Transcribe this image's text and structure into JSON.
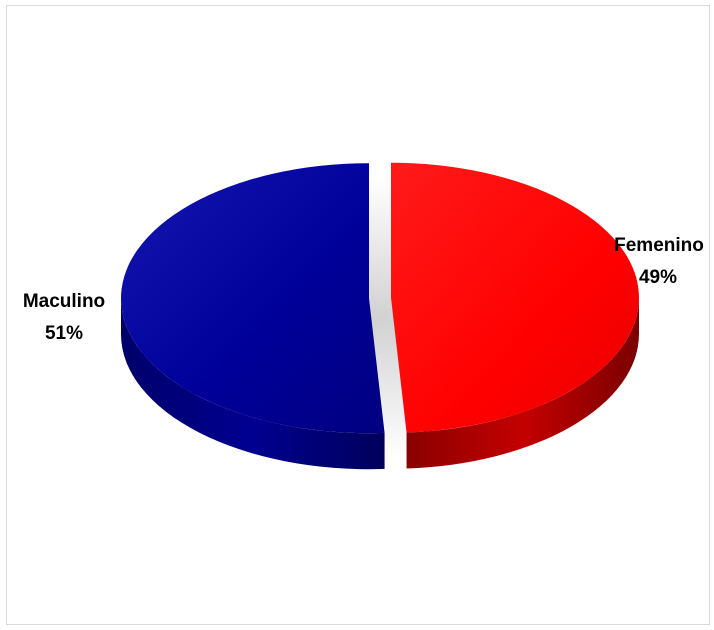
{
  "chart_data": {
    "type": "pie",
    "style": "3d-exploded",
    "slices": [
      {
        "name": "Maculino",
        "value": 51,
        "percent_label": "51%",
        "color": "#00008b"
      },
      {
        "name": "Femenino",
        "value": 49,
        "percent_label": "49%",
        "color": "#ff0000"
      }
    ],
    "legend": "none",
    "title": ""
  }
}
